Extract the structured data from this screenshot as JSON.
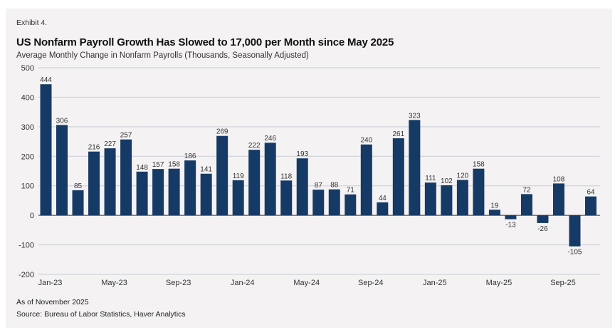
{
  "header": {
    "exhibit": "Exhibit 4.",
    "title": "US Nonfarm Payroll Growth Has Slowed to 17,000 per Month since May 2025",
    "subtitle": "Average Monthly Change in Nonfarm Payrolls (Thousands, Seasonally Adjusted)"
  },
  "footer": {
    "as_of": "As of November 2025",
    "source": "Source: Bureau of Labor Statistics, Haver Analytics"
  },
  "colors": {
    "bar": "#163a66",
    "grid": "#c9cdd3",
    "zero_line": "#333333",
    "background": "#f4f2f3"
  },
  "chart_data": {
    "type": "bar",
    "title": "US Nonfarm Payroll Growth Has Slowed to 17,000 per Month since May 2025",
    "subtitle": "Average Monthly Change in Nonfarm Payrolls (Thousands, Seasonally Adjusted)",
    "xlabel": "",
    "ylabel": "",
    "ylim": [
      -200,
      500
    ],
    "yticks": [
      500,
      400,
      300,
      200,
      100,
      0,
      -100,
      -200
    ],
    "grid": true,
    "legend": "none",
    "categories": [
      "Jan-23",
      "Feb-23",
      "Mar-23",
      "Apr-23",
      "May-23",
      "Jun-23",
      "Jul-23",
      "Aug-23",
      "Sep-23",
      "Oct-23",
      "Nov-23",
      "Dec-23",
      "Jan-24",
      "Feb-24",
      "Mar-24",
      "Apr-24",
      "May-24",
      "Jun-24",
      "Jul-24",
      "Aug-24",
      "Sep-24",
      "Oct-24",
      "Nov-24",
      "Dec-24",
      "Jan-25",
      "Feb-25",
      "Mar-25",
      "Apr-25",
      "May-25",
      "Jun-25",
      "Jul-25",
      "Aug-25",
      "Sep-25",
      "Oct-25",
      "Nov-25"
    ],
    "values": [
      444,
      306,
      85,
      216,
      227,
      257,
      148,
      157,
      158,
      186,
      141,
      269,
      119,
      222,
      246,
      118,
      193,
      87,
      88,
      71,
      240,
      44,
      261,
      323,
      111,
      102,
      120,
      158,
      19,
      -13,
      72,
      -26,
      108,
      -105,
      64
    ],
    "data_labels": [
      "444",
      "306",
      "85",
      "216",
      "227",
      "257",
      "148",
      "157",
      "158",
      "186",
      "141",
      "269",
      "119",
      "222",
      "246",
      "118",
      "193",
      "87",
      "88",
      "71",
      "240",
      "44",
      "261",
      "323",
      "111",
      "102",
      "120",
      "158",
      "19",
      "-13",
      "72",
      "-26",
      "108",
      "-105",
      "64"
    ],
    "xtick_labels": [
      {
        "index": 0,
        "label": "Jan-23"
      },
      {
        "index": 4,
        "label": "May-23"
      },
      {
        "index": 8,
        "label": "Sep-23"
      },
      {
        "index": 12,
        "label": "Jan-24"
      },
      {
        "index": 16,
        "label": "May-24"
      },
      {
        "index": 20,
        "label": "Sep-24"
      },
      {
        "index": 24,
        "label": "Jan-25"
      },
      {
        "index": 28,
        "label": "May-25"
      },
      {
        "index": 32,
        "label": "Sep-25"
      }
    ]
  }
}
